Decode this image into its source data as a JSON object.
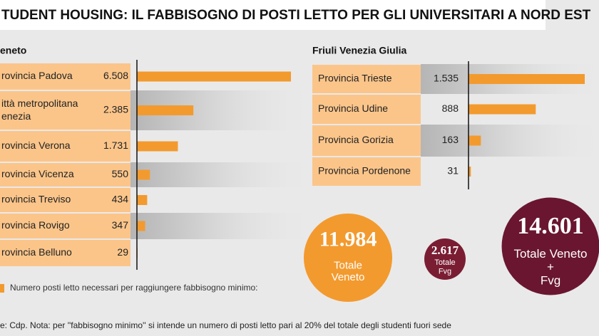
{
  "title": "TUDENT HOUSING: IL FABBISOGNO DI POSTI LETTO PER GLI UNIVERSITARI A NORD EST",
  "legend_text": "Numero posti letto necessari per raggiungere fabbisogno minimo:",
  "note": "e: Cdp. Nota: per ''fabbisogno minimo'' si intende un numero di posti letto pari al 20% del totale degli studenti fuori sede",
  "chart_data": [
    {
      "type": "bar",
      "title": "eneto",
      "categories": [
        "rovincia Padova",
        "ittà metropolitana\nenezia",
        "rovincia Verona",
        "rovincia Vicenza",
        "rovincia Treviso",
        "rovincia Rovigo",
        "rovincia Belluno"
      ],
      "values": [
        6508,
        2385,
        1731,
        550,
        434,
        347,
        29
      ],
      "value_labels": [
        "6.508",
        "2.385",
        "1.731",
        "550",
        "434",
        "347",
        "29"
      ],
      "color": "#f39a2e"
    },
    {
      "type": "bar",
      "title": "Friuli Venezia Giulia",
      "categories": [
        "Provincia Trieste",
        "Provincia Udine",
        "Provincia Gorizia",
        "Provincia Pordenone"
      ],
      "values": [
        1535,
        888,
        163,
        31
      ],
      "value_labels": [
        "1.535",
        "888",
        "163",
        "31"
      ],
      "color": "#f39a2e"
    },
    {
      "type": "bubble",
      "categories": [
        "Totale\nVeneto",
        "Totale\nFvg",
        "Totale Veneto\n+\nFvg"
      ],
      "values": [
        11984,
        2617,
        14601
      ],
      "value_labels": [
        "11.984",
        "2.617",
        "14.601"
      ],
      "colors": [
        "#f39a2e",
        "#7a1d33",
        "#6a1630"
      ]
    }
  ]
}
